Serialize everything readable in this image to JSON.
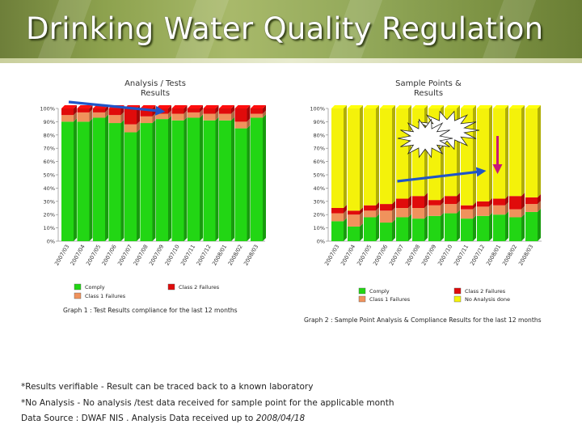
{
  "page": {
    "title": "Drinking Water Quality Regulation"
  },
  "notes": {
    "n1": "*Results verifiable - Result can be traced back to a known laboratory",
    "n2": "*No Analysis - No analysis /test data received for sample point for the applicable month",
    "n3_prefix": "Data Source : DWAF NIS . Analysis Data received up to ",
    "n3_date": "2008/04/18"
  },
  "colors": {
    "comply": "#22d614",
    "class1": "#f0925c",
    "class2": "#e00b0b",
    "noanalysis": "#f4f20a",
    "arrow_blue": "#1f55c8",
    "arrow_magenta": "#c8157a"
  },
  "chart_data": [
    {
      "type": "bar",
      "stacked": true,
      "title": "Analysis / Tests Results",
      "title_lines": [
        "Analysis / Tests",
        "Results"
      ],
      "caption": "Graph 1 : Test Results compliance for the last 12 months",
      "categories": [
        "2007/03",
        "2007/04",
        "2007/05",
        "2007/06",
        "2007/07",
        "2007/08",
        "2007/09",
        "2007/10",
        "2007/11",
        "2007/12",
        "2008/01",
        "2008/02",
        "2008/03"
      ],
      "yticks": [
        "0%",
        "10%",
        "20%",
        "30%",
        "40%",
        "50%",
        "60%",
        "70%",
        "80%",
        "90%",
        "100%"
      ],
      "ylim": [
        0,
        100
      ],
      "series": [
        {
          "name": "Comply",
          "color": "#22d614",
          "values": [
            90,
            90,
            93,
            89,
            82,
            89,
            92,
            91,
            93,
            91,
            91,
            85,
            93
          ]
        },
        {
          "name": "Class 1 Failures",
          "color": "#f0925c",
          "values": [
            5,
            7,
            4,
            6,
            6,
            5,
            4,
            5,
            4,
            5,
            5,
            5,
            3
          ]
        },
        {
          "name": "Class 2 Failures",
          "color": "#e00b0b",
          "values": [
            5,
            3,
            3,
            5,
            12,
            6,
            4,
            4,
            3,
            4,
            4,
            10,
            4
          ]
        }
      ],
      "legend": [
        {
          "label": "Comply",
          "color": "#22d614"
        },
        {
          "label": "Class 2 Failures",
          "color": "#e00b0b"
        },
        {
          "label": "Class 1 Failures",
          "color": "#f0925c"
        }
      ],
      "annotations": [
        {
          "type": "arrow",
          "color": "#1f55c8",
          "from": "2007/04",
          "to": "2007/09"
        }
      ]
    },
    {
      "type": "bar",
      "stacked": true,
      "title": "Sample Points & Results",
      "title_lines": [
        "Sample Points &",
        "Results"
      ],
      "caption": "Graph 2 : Sample Point Analysis & Compliance Results for the last 12 months",
      "categories": [
        "2007/03",
        "2007/04",
        "2007/05",
        "2007/06",
        "2007/07",
        "2007/08",
        "2007/09",
        "2007/10",
        "2007/11",
        "2007/12",
        "2008/01",
        "2008/02",
        "2008/03"
      ],
      "yticks": [
        "0%",
        "10%",
        "20%",
        "30%",
        "40%",
        "50%",
        "60%",
        "70%",
        "80%",
        "90%",
        "100%"
      ],
      "ylim": [
        0,
        100
      ],
      "series": [
        {
          "name": "Comply",
          "color": "#22d614",
          "values": [
            15,
            11,
            18,
            14,
            18,
            17,
            19,
            21,
            17,
            19,
            20,
            18,
            22
          ]
        },
        {
          "name": "Class 1 Failures",
          "color": "#f0925c",
          "values": [
            6,
            9,
            5,
            9,
            7,
            8,
            8,
            7,
            7,
            7,
            7,
            6,
            6
          ]
        },
        {
          "name": "Class 2 Failures",
          "color": "#e00b0b",
          "values": [
            4,
            3,
            4,
            5,
            7,
            9,
            4,
            6,
            3,
            4,
            5,
            10,
            5
          ]
        },
        {
          "name": "No Analysis done",
          "color": "#f4f20a",
          "values": [
            75,
            77,
            73,
            72,
            68,
            66,
            69,
            66,
            73,
            70,
            68,
            66,
            67
          ]
        }
      ],
      "legend": [
        {
          "label": "Comply",
          "color": "#22d614"
        },
        {
          "label": "Class 2 Failures",
          "color": "#e00b0b"
        },
        {
          "label": "Class 1 Failures",
          "color": "#f0925c"
        },
        {
          "label": "No Analysis done",
          "color": "#f4f20a"
        }
      ],
      "annotations": [
        {
          "type": "arrow",
          "color": "#1f55c8",
          "from": "2007/07",
          "to": "2007/12"
        },
        {
          "type": "arrow",
          "color": "#c8157a",
          "direction": "down",
          "at": "2008/01"
        },
        {
          "type": "starburst",
          "count": 2
        }
      ]
    }
  ]
}
